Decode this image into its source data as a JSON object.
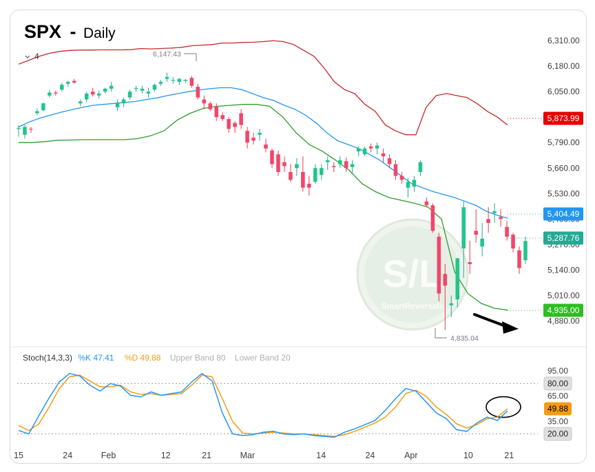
{
  "title": {
    "ticker": "SPX",
    "separator": "-",
    "timeframe": "Daily"
  },
  "collapse_toggle": {
    "icon": "chevron-down-icon",
    "count": "4"
  },
  "colors": {
    "up": "#26a69a",
    "up_fill": "#22c58b",
    "down": "#f23645",
    "down_fill": "#f0476a",
    "upper_band": "#c62828",
    "middle_band": "#2196f3",
    "lower_band": "#2a9d2a",
    "stoch_k": "#2196f3",
    "stoch_d": "#f39c12",
    "circle": "#000000",
    "arrow": "#000000"
  },
  "chart_data": [
    {
      "type": "candlestick",
      "title": "SPX - Daily",
      "ylim": [
        4780,
        6370
      ],
      "y_ticks": [
        6310,
        6180,
        6050,
        5920,
        5790,
        5660,
        5530,
        5400,
        5270,
        5140,
        5010,
        4880
      ],
      "y_tick_labels": [
        "6,310.00",
        "6,180.00",
        "6,050.00",
        "5,920.00",
        "5,790.00",
        "5,660.00",
        "5,530.00",
        "5,400.00",
        "5,270.00",
        "5,140.00",
        "5,010.00",
        "4,880.00"
      ],
      "x_tick_labels": [
        {
          "label": "15",
          "index": 0
        },
        {
          "label": "24",
          "index": 6
        },
        {
          "label": "Feb",
          "index": 11
        },
        {
          "label": "12",
          "index": 18
        },
        {
          "label": "21",
          "index": 23
        },
        {
          "label": "Mar",
          "index": 28
        },
        {
          "label": "14",
          "index": 37
        },
        {
          "label": "24",
          "index": 43
        },
        {
          "label": "Apr",
          "index": 48
        },
        {
          "label": "10",
          "index": 55
        },
        {
          "label": "21",
          "index": 60
        }
      ],
      "candles": [
        [
          5860,
          5880,
          5820,
          5865
        ],
        [
          5830,
          5880,
          5810,
          5870
        ],
        [
          5860,
          5870,
          5840,
          5858
        ],
        [
          5940,
          5965,
          5930,
          5950
        ],
        [
          5955,
          5995,
          5950,
          5990
        ],
        [
          6030,
          6060,
          6020,
          6045
        ],
        [
          6045,
          6055,
          6030,
          6040
        ],
        [
          6060,
          6095,
          6050,
          6085
        ],
        [
          6090,
          6105,
          6075,
          6100
        ],
        [
          6105,
          6115,
          6090,
          6096
        ],
        [
          5990,
          6010,
          5975,
          6000
        ],
        [
          6010,
          6050,
          5995,
          6040
        ],
        [
          6050,
          6070,
          6025,
          6035
        ],
        [
          6030,
          6055,
          6015,
          6040
        ],
        [
          6050,
          6070,
          6040,
          6065
        ],
        [
          6065,
          6100,
          6050,
          6080
        ],
        [
          5970,
          6010,
          5950,
          5990
        ],
        [
          5990,
          6020,
          5970,
          6010
        ],
        [
          6020,
          6060,
          6010,
          6050
        ],
        [
          6065,
          6080,
          6050,
          6068
        ],
        [
          6055,
          6080,
          6040,
          6065
        ],
        [
          6040,
          6070,
          6020,
          6050
        ],
        [
          6060,
          6090,
          6050,
          6085
        ],
        [
          6090,
          6110,
          6080,
          6100
        ],
        [
          6115,
          6147,
          6100,
          6125
        ],
        [
          6110,
          6125,
          6090,
          6110
        ],
        [
          6100,
          6120,
          6085,
          6115
        ],
        [
          6105,
          6115,
          6095,
          6110
        ],
        [
          6120,
          6130,
          6070,
          6080
        ],
        [
          6075,
          6090,
          6010,
          6020
        ],
        [
          6010,
          6030,
          5960,
          5990
        ],
        [
          5990,
          6000,
          5950,
          5960
        ],
        [
          5975,
          5990,
          5900,
          5920
        ],
        [
          5930,
          5945,
          5900,
          5910
        ],
        [
          5910,
          5920,
          5840,
          5860
        ],
        [
          5890,
          5900,
          5840,
          5870
        ],
        [
          5940,
          5960,
          5860,
          5880
        ],
        [
          5850,
          5870,
          5760,
          5790
        ],
        [
          5815,
          5840,
          5780,
          5800
        ],
        [
          5830,
          5860,
          5800,
          5840
        ],
        [
          5780,
          5810,
          5740,
          5760
        ],
        [
          5750,
          5760,
          5660,
          5680
        ],
        [
          5730,
          5750,
          5620,
          5640
        ],
        [
          5690,
          5720,
          5640,
          5670
        ],
        [
          5640,
          5680,
          5590,
          5600
        ],
        [
          5660,
          5710,
          5620,
          5680
        ],
        [
          5640,
          5720,
          5540,
          5560
        ],
        [
          5580,
          5620,
          5520,
          5560
        ],
        [
          5590,
          5680,
          5580,
          5660
        ],
        [
          5625,
          5680,
          5600,
          5660
        ],
        [
          5690,
          5720,
          5650,
          5700
        ],
        [
          5670,
          5690,
          5640,
          5665
        ],
        [
          5680,
          5720,
          5660,
          5700
        ],
        [
          5695,
          5715,
          5640,
          5660
        ],
        [
          5665,
          5700,
          5630,
          5680
        ],
        [
          5745,
          5770,
          5720,
          5760
        ],
        [
          5730,
          5770,
          5720,
          5760
        ],
        [
          5770,
          5785,
          5740,
          5760
        ],
        [
          5760,
          5790,
          5730,
          5775
        ],
        [
          5735,
          5760,
          5690,
          5720
        ],
        [
          5710,
          5730,
          5660,
          5680
        ],
        [
          5680,
          5700,
          5600,
          5620
        ],
        [
          5620,
          5640,
          5580,
          5600
        ],
        [
          5560,
          5610,
          5510,
          5590
        ],
        [
          5565,
          5620,
          5540,
          5600
        ],
        [
          5640,
          5700,
          5620,
          5690
        ],
        [
          5490,
          5510,
          5460,
          5470
        ],
        [
          5470,
          5480,
          5330,
          5340
        ],
        [
          5310,
          5330,
          4980,
          5020
        ],
        [
          5120,
          5170,
          4835,
          5060
        ],
        [
          4960,
          5010,
          4900,
          4970
        ],
        [
          4990,
          5200,
          4950,
          5200
        ],
        [
          5250,
          5490,
          5100,
          5460
        ],
        [
          5180,
          5290,
          5120,
          5170
        ],
        [
          5340,
          5450,
          5280,
          5320
        ],
        [
          5260,
          5380,
          5210,
          5300
        ],
        [
          5400,
          5460,
          5330,
          5380
        ],
        [
          5430,
          5480,
          5380,
          5440
        ],
        [
          5410,
          5450,
          5360,
          5400
        ],
        [
          5360,
          5390,
          5290,
          5310
        ],
        [
          5320,
          5330,
          5230,
          5250
        ],
        [
          5240,
          5260,
          5120,
          5150
        ],
        [
          5190,
          5310,
          5170,
          5287.76
        ]
      ],
      "series": [
        {
          "name": "Upper Band",
          "values": [
            6190,
            6210,
            6230,
            6245,
            6255,
            6260,
            6262,
            6262,
            6263,
            6263,
            6263,
            6264,
            6270,
            6268,
            6270,
            6272,
            6276,
            6284,
            6287,
            6290,
            6298,
            6298,
            6301,
            6302,
            6305,
            6310,
            6305,
            6290,
            6260,
            6230,
            6170,
            6100,
            6060,
            6040,
            5985,
            5950,
            5880,
            5850,
            5830,
            5830,
            5970,
            6030,
            6040,
            6030,
            6020,
            5990,
            5950,
            5920,
            5880
          ]
        },
        {
          "name": "Middle Band",
          "values": [
            5870,
            5895,
            5915,
            5930,
            5945,
            5958,
            5970,
            5980,
            5985,
            5990,
            5995,
            6000,
            6010,
            6018,
            6030,
            6040,
            6050,
            6058,
            6065,
            6070,
            6070,
            6060,
            6040,
            6020,
            6005,
            5980,
            5960,
            5930,
            5890,
            5840,
            5800,
            5780,
            5760,
            5730,
            5700,
            5660,
            5620,
            5580,
            5560,
            5540,
            5525,
            5510,
            5490,
            5470,
            5440,
            5420,
            5404.49
          ]
        },
        {
          "name": "Lower Band",
          "values": [
            5790,
            5790,
            5795,
            5802,
            5803,
            5805,
            5805,
            5805,
            5805,
            5810,
            5825,
            5850,
            5905,
            5940,
            5965,
            5975,
            5980,
            5985,
            5985,
            5975,
            5920,
            5840,
            5780,
            5745,
            5700,
            5650,
            5580,
            5540,
            5510,
            5495,
            5480,
            5460,
            5400,
            5130,
            5020,
            4970,
            4945,
            4935
          ]
        }
      ],
      "annotations": [
        {
          "label": "6,147.43",
          "value": 6147.43
        },
        {
          "label": "4,835.04",
          "value": 4835.04
        }
      ],
      "price_tags": [
        {
          "label": "5,873.99",
          "value": 5873.99,
          "color": "#e60000"
        },
        {
          "label": "5,404.49",
          "value": 5404.49,
          "color": "#2196f3"
        },
        {
          "label": "5,287.76",
          "value": 5287.76,
          "color": "#22ab94"
        },
        {
          "label": "4,935.00",
          "value": 4935.0,
          "color": "#2ebd22"
        }
      ],
      "watermark": {
        "big": "S/L",
        "small": "SmartReversals"
      }
    },
    {
      "type": "line",
      "title": "Stoch(14,3,3)",
      "ylim": [
        0,
        100
      ],
      "y_ticks": [
        95,
        80,
        65,
        35,
        20
      ],
      "y_tick_labels": [
        "95.00",
        "80.00",
        "65.00",
        "35.00",
        "20.00"
      ],
      "bands": {
        "upper": 80,
        "lower": 20
      },
      "legend": {
        "name": "Stoch(14,3,3)",
        "k_label": "%K 47.41",
        "d_label": "%D 49.88",
        "upper_label": "Upper Band 80",
        "lower_label": "Lower Band 20"
      },
      "series": [
        {
          "name": "%K",
          "values": [
            24,
            20,
            42,
            63,
            82,
            92,
            89,
            78,
            71,
            80,
            77,
            66,
            64,
            70,
            66,
            68,
            70,
            82,
            92,
            83,
            45,
            20,
            18,
            19,
            22,
            23,
            20,
            19,
            20,
            18,
            17,
            16,
            22,
            26,
            31,
            36,
            48,
            62,
            74,
            71,
            58,
            45,
            38,
            25,
            23,
            33,
            40,
            36,
            47.41
          ]
        },
        {
          "name": "%D",
          "values": [
            30,
            24,
            32,
            52,
            74,
            88,
            90,
            83,
            76,
            76,
            78,
            70,
            67,
            68,
            66,
            67,
            68,
            78,
            90,
            88,
            62,
            35,
            21,
            20,
            21,
            22,
            21,
            20,
            20,
            19,
            18,
            17,
            19,
            23,
            28,
            33,
            40,
            52,
            68,
            72,
            65,
            52,
            43,
            32,
            27,
            31,
            38,
            40,
            49.88
          ]
        }
      ],
      "value_tags": [
        {
          "label": "80.00",
          "value": 80
        },
        {
          "label": "49.88",
          "value": 49.88,
          "color": "#f39c12"
        },
        {
          "label": "20.00",
          "value": 20
        }
      ]
    }
  ]
}
